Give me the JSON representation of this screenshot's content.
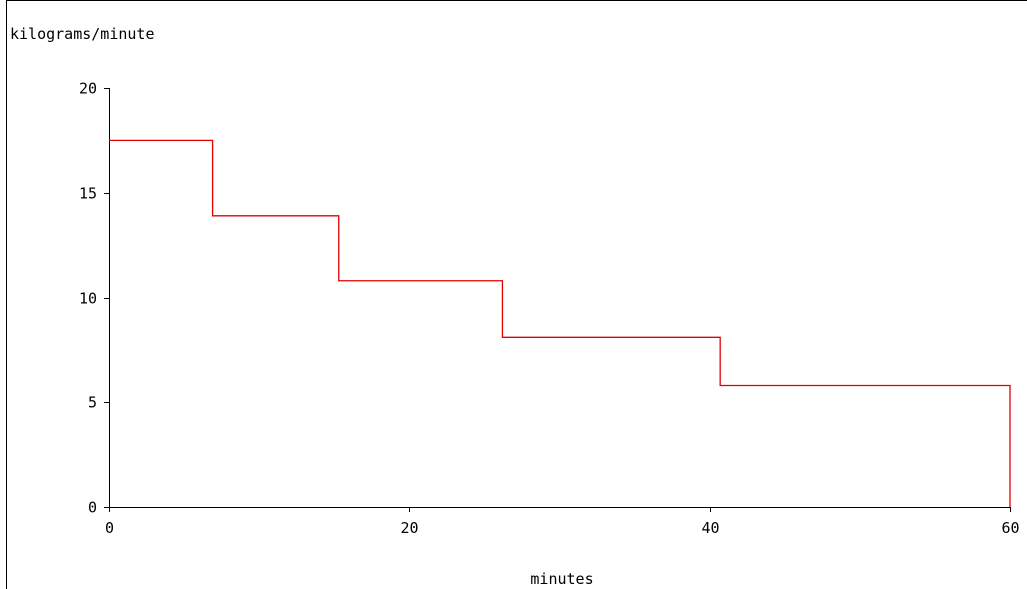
{
  "chart_data": {
    "type": "line",
    "step": true,
    "title": "",
    "ylabel": "kilograms/minute",
    "xlabel": "minutes",
    "xlim": [
      0,
      60
    ],
    "ylim": [
      0,
      20
    ],
    "x_ticks": [
      0,
      20,
      40,
      60
    ],
    "y_ticks": [
      0,
      5,
      10,
      15,
      20
    ],
    "grid": false,
    "series_color": "#e00000",
    "steps": [
      {
        "x_start": 0,
        "x_end": 6.9,
        "y": 17.5
      },
      {
        "x_start": 6.9,
        "x_end": 15.3,
        "y": 13.9
      },
      {
        "x_start": 15.3,
        "x_end": 26.2,
        "y": 10.8
      },
      {
        "x_start": 26.2,
        "x_end": 40.7,
        "y": 8.1
      },
      {
        "x_start": 40.7,
        "x_end": 60,
        "y": 5.8
      }
    ],
    "end_drop_to": 0
  }
}
